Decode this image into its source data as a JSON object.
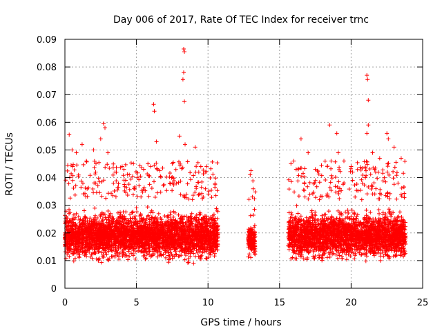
{
  "chart_data": {
    "type": "scatter",
    "title": "Day 006 of 2017, Rate Of TEC Index for receiver trnc",
    "xlabel": "GPS time / hours",
    "ylabel": "ROTI / TECUs",
    "xlim": [
      0,
      25
    ],
    "ylim": [
      0,
      0.09
    ],
    "xticks": [
      0,
      5,
      10,
      15,
      20,
      25
    ],
    "yticks": [
      0,
      0.01,
      0.02,
      0.03,
      0.04,
      0.05,
      0.06,
      0.07,
      0.08,
      0.09
    ],
    "xtick_labels": [
      "0",
      "5",
      "10",
      "15",
      "20",
      "25"
    ],
    "ytick_labels": [
      "0",
      "0.01",
      "0.02",
      "0.03",
      "0.04",
      "0.05",
      "0.06",
      "0.07",
      "0.08",
      "0.09"
    ],
    "grid": true,
    "marker": "+",
    "marker_color": "#ff0000",
    "segments": [
      {
        "x_start": 0.0,
        "x_end": 10.7,
        "typical_min": 0.007,
        "typical_max": 0.032,
        "median": 0.019
      },
      {
        "x_start": 12.8,
        "x_end": 13.3,
        "typical_min": 0.009,
        "typical_max": 0.025,
        "median": 0.017
      },
      {
        "x_start": 15.6,
        "x_end": 23.8,
        "typical_min": 0.007,
        "typical_max": 0.032,
        "median": 0.019
      }
    ],
    "notable_points": [
      {
        "x": 0.3,
        "y": 0.0555
      },
      {
        "x": 0.5,
        "y": 0.05
      },
      {
        "x": 0.8,
        "y": 0.049
      },
      {
        "x": 1.2,
        "y": 0.052
      },
      {
        "x": 1.5,
        "y": 0.046
      },
      {
        "x": 2.0,
        "y": 0.05
      },
      {
        "x": 2.5,
        "y": 0.054
      },
      {
        "x": 2.7,
        "y": 0.0595
      },
      {
        "x": 2.8,
        "y": 0.058
      },
      {
        "x": 3.0,
        "y": 0.049
      },
      {
        "x": 3.5,
        "y": 0.042
      },
      {
        "x": 4.0,
        "y": 0.044
      },
      {
        "x": 4.5,
        "y": 0.041
      },
      {
        "x": 5.5,
        "y": 0.043
      },
      {
        "x": 5.8,
        "y": 0.045
      },
      {
        "x": 6.2,
        "y": 0.0665
      },
      {
        "x": 6.25,
        "y": 0.064
      },
      {
        "x": 6.4,
        "y": 0.053
      },
      {
        "x": 7.5,
        "y": 0.045
      },
      {
        "x": 8.0,
        "y": 0.055
      },
      {
        "x": 8.3,
        "y": 0.0865
      },
      {
        "x": 8.35,
        "y": 0.0855
      },
      {
        "x": 8.3,
        "y": 0.078
      },
      {
        "x": 8.25,
        "y": 0.0755
      },
      {
        "x": 8.35,
        "y": 0.0675
      },
      {
        "x": 8.4,
        "y": 0.052
      },
      {
        "x": 9.1,
        "y": 0.051
      },
      {
        "x": 9.5,
        "y": 0.044
      },
      {
        "x": 13.0,
        "y": 0.0425
      },
      {
        "x": 12.95,
        "y": 0.041
      },
      {
        "x": 13.1,
        "y": 0.033
      },
      {
        "x": 16.0,
        "y": 0.046
      },
      {
        "x": 16.5,
        "y": 0.054
      },
      {
        "x": 17.0,
        "y": 0.049
      },
      {
        "x": 17.5,
        "y": 0.043
      },
      {
        "x": 18.5,
        "y": 0.059
      },
      {
        "x": 18.6,
        "y": 0.046
      },
      {
        "x": 19.0,
        "y": 0.056
      },
      {
        "x": 19.1,
        "y": 0.049
      },
      {
        "x": 19.5,
        "y": 0.046
      },
      {
        "x": 20.0,
        "y": 0.044
      },
      {
        "x": 21.1,
        "y": 0.077
      },
      {
        "x": 21.15,
        "y": 0.0755
      },
      {
        "x": 21.2,
        "y": 0.068
      },
      {
        "x": 21.2,
        "y": 0.059
      },
      {
        "x": 21.1,
        "y": 0.056
      },
      {
        "x": 21.5,
        "y": 0.049
      },
      {
        "x": 22.0,
        "y": 0.047
      },
      {
        "x": 22.5,
        "y": 0.056
      },
      {
        "x": 22.6,
        "y": 0.054
      },
      {
        "x": 23.0,
        "y": 0.051
      },
      {
        "x": 23.5,
        "y": 0.047
      }
    ]
  }
}
